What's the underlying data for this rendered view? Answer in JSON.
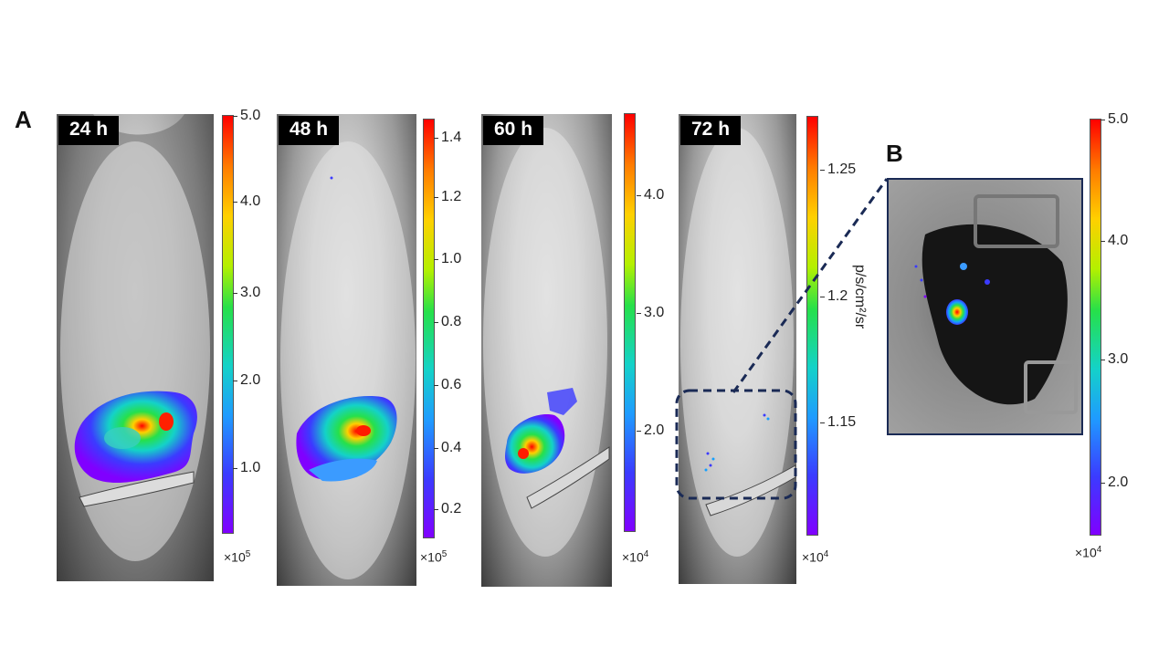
{
  "panels": {
    "a": "A",
    "b": "B"
  },
  "images": [
    {
      "time": "24 h",
      "ticks": [
        "5.0",
        "4.0",
        "3.0",
        "2.0",
        "1.0"
      ],
      "multiplier": "×10",
      "exp": "5"
    },
    {
      "time": "48 h",
      "ticks": [
        "1.4",
        "1.2",
        "1.0",
        "0.8",
        "0.6",
        "0.4",
        "0.2"
      ],
      "multiplier": "×10",
      "exp": "5"
    },
    {
      "time": "60 h",
      "ticks": [
        "4.0",
        "3.0",
        "2.0"
      ],
      "multiplier": "×10",
      "exp": "4"
    },
    {
      "time": "72 h",
      "ticks": [
        "1.25",
        "1.2",
        "1.15"
      ],
      "multiplier": "×10",
      "exp": "4"
    }
  ],
  "unit": "p/s/cm²/sr",
  "zoom": {
    "ticks": [
      "5.0",
      "4.0",
      "3.0",
      "2.0"
    ],
    "multiplier": "×10",
    "exp": "4"
  }
}
